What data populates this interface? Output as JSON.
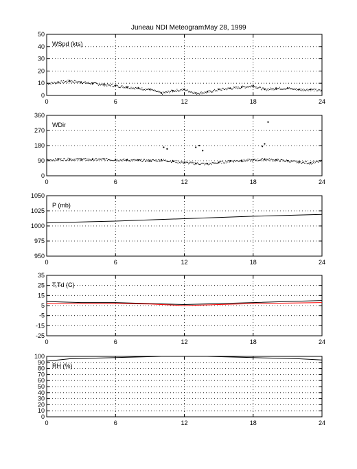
{
  "figure": {
    "title_left": "Juneau NDI Meteogram:",
    "title_right": "May 28, 1999"
  },
  "chart_data": [
    {
      "type": "scatter",
      "label": "WSpd (kts)",
      "xlim": [
        0,
        24
      ],
      "ylim": [
        0,
        50
      ],
      "xticks": [
        0,
        6,
        12,
        18,
        24
      ],
      "yticks": [
        0,
        10,
        20,
        30,
        40,
        50
      ],
      "grid": true,
      "series": [
        {
          "color": "#000000",
          "x": [
            0,
            1,
            2,
            3,
            4,
            5,
            6,
            7,
            8,
            9,
            10,
            11,
            12,
            13,
            14,
            15,
            16,
            17,
            18,
            19,
            20,
            21,
            22,
            23,
            24
          ],
          "y": [
            10,
            11,
            12,
            11,
            10,
            9,
            8,
            7,
            6,
            5,
            2,
            4,
            5,
            2,
            3,
            5,
            6,
            7,
            8,
            5,
            6,
            6,
            5,
            5,
            4
          ]
        }
      ]
    },
    {
      "type": "scatter",
      "label": "WDir",
      "xlim": [
        0,
        24
      ],
      "ylim": [
        0,
        360
      ],
      "xticks": [
        0,
        6,
        12,
        18,
        24
      ],
      "yticks": [
        0,
        90,
        180,
        270,
        360
      ],
      "grid": true,
      "series": [
        {
          "color": "#000000",
          "x": [
            0,
            1,
            2,
            3,
            4,
            5,
            6,
            7,
            8,
            9,
            10,
            11,
            12,
            13,
            14,
            15,
            16,
            17,
            18,
            19,
            20,
            21,
            22,
            23,
            24
          ],
          "y": [
            95,
            100,
            100,
            100,
            98,
            100,
            97,
            95,
            93,
            92,
            95,
            88,
            80,
            75,
            72,
            80,
            90,
            92,
            95,
            100,
            95,
            90,
            82,
            78,
            90
          ]
        },
        {
          "color": "#000000",
          "x": [
            10.2,
            10.5,
            13.0,
            13.3,
            13.6,
            18.8,
            19.0,
            19.3
          ],
          "y": [
            170,
            160,
            170,
            180,
            150,
            175,
            190,
            320
          ]
        }
      ]
    },
    {
      "type": "line",
      "label": "P (mb)",
      "xlim": [
        0,
        24
      ],
      "ylim": [
        950,
        1050
      ],
      "xticks": [
        0,
        6,
        12,
        18,
        24
      ],
      "yticks": [
        950,
        975,
        1000,
        1025,
        1050
      ],
      "grid": true,
      "series": [
        {
          "color": "#000000",
          "x": [
            0,
            6,
            12,
            18,
            24
          ],
          "y": [
            1005,
            1008,
            1012,
            1016,
            1019
          ]
        }
      ]
    },
    {
      "type": "line",
      "label": "T,Td (C)",
      "xlim": [
        0,
        24
      ],
      "ylim": [
        -25,
        35
      ],
      "xticks": [
        0,
        6,
        12,
        18,
        24
      ],
      "yticks": [
        -25,
        -15,
        -5,
        5,
        15,
        25,
        35
      ],
      "grid": true,
      "series": [
        {
          "color": "#000000",
          "x": [
            0,
            3,
            6,
            9,
            12,
            15,
            18,
            21,
            24
          ],
          "y": [
            9,
            8,
            8,
            7,
            6,
            7,
            8,
            9,
            10
          ]
        },
        {
          "color": "#ff0000",
          "x": [
            0,
            3,
            6,
            9,
            12,
            15,
            18,
            21,
            24
          ],
          "y": [
            7,
            7,
            7,
            6.5,
            5,
            6,
            7,
            7.5,
            8
          ]
        }
      ]
    },
    {
      "type": "line",
      "label": "RH (%)",
      "xlim": [
        0,
        24
      ],
      "ylim": [
        0,
        100
      ],
      "xticks": [
        0,
        6,
        12,
        18,
        24
      ],
      "yticks": [
        0,
        10,
        20,
        30,
        40,
        50,
        60,
        70,
        80,
        90,
        100
      ],
      "grid": true,
      "series": [
        {
          "color": "#000000",
          "x": [
            0,
            1,
            2,
            4,
            6,
            8,
            10,
            12,
            14,
            16,
            18,
            20,
            22,
            23,
            24
          ],
          "y": [
            92,
            94,
            96,
            97,
            98,
            99,
            100,
            100,
            100,
            99,
            98,
            97,
            96,
            95,
            94
          ]
        }
      ]
    }
  ]
}
